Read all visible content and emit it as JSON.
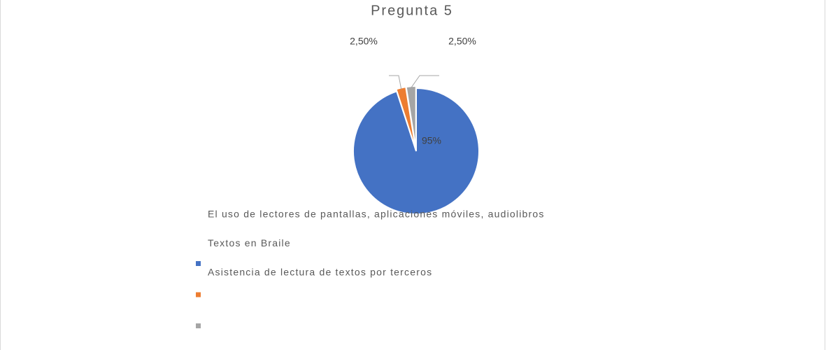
{
  "chart_data": {
    "type": "pie",
    "title": "Pregunta 5",
    "categories": [
      "El uso de lectores de pantallas, aplicaciones móviles, audiolibros",
      "Textos en Braile",
      "Asistencia de lectura de textos por terceros"
    ],
    "values": [
      95,
      2.5,
      2.5
    ],
    "value_labels": [
      "95%",
      "2,50%",
      "2,50%"
    ],
    "colors": [
      "#4472c4",
      "#ed7d31",
      "#a5a5a5"
    ]
  }
}
